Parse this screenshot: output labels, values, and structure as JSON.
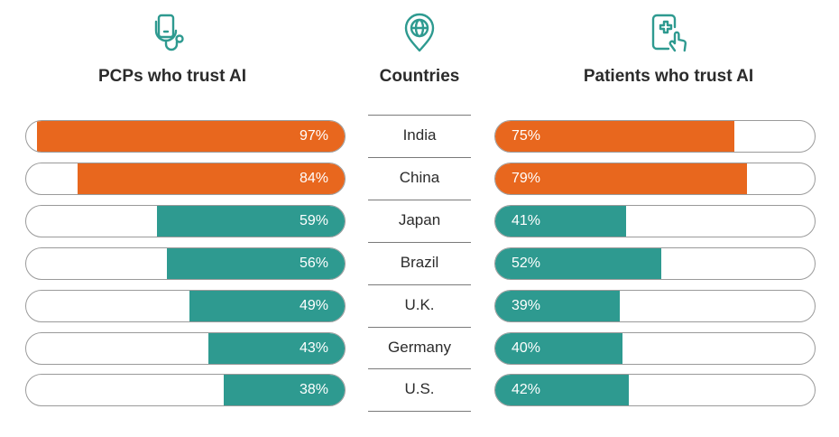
{
  "headers": {
    "left": "PCPs who trust AI",
    "middle": "Countries",
    "right": "Patients who trust AI"
  },
  "icons": {
    "left": "stethoscope-phone-icon",
    "middle": "globe-pin-icon",
    "right": "phone-medical-tap-icon"
  },
  "colors": {
    "high": "#e8671e",
    "low": "#2e9a90",
    "outline": "#9a9a9a",
    "icon": "#2e9a90"
  },
  "chart_data": {
    "type": "bar",
    "categories": [
      "India",
      "China",
      "Japan",
      "Brazil",
      "U.K.",
      "Germany",
      "U.S."
    ],
    "series": [
      {
        "name": "PCPs who trust AI",
        "values": [
          97,
          84,
          59,
          56,
          49,
          43,
          38
        ],
        "labels": [
          "97%",
          "84%",
          "59%",
          "56%",
          "49%",
          "43%",
          "38%"
        ],
        "colors": [
          "#e8671e",
          "#e8671e",
          "#2e9a90",
          "#2e9a90",
          "#2e9a90",
          "#2e9a90",
          "#2e9a90"
        ]
      },
      {
        "name": "Patients who trust AI",
        "values": [
          75,
          79,
          41,
          52,
          39,
          40,
          42
        ],
        "labels": [
          "75%",
          "79%",
          "41%",
          "52%",
          "39%",
          "40%",
          "42%"
        ],
        "colors": [
          "#e8671e",
          "#e8671e",
          "#2e9a90",
          "#2e9a90",
          "#2e9a90",
          "#2e9a90",
          "#2e9a90"
        ]
      }
    ],
    "ylim": [
      0,
      100
    ]
  }
}
